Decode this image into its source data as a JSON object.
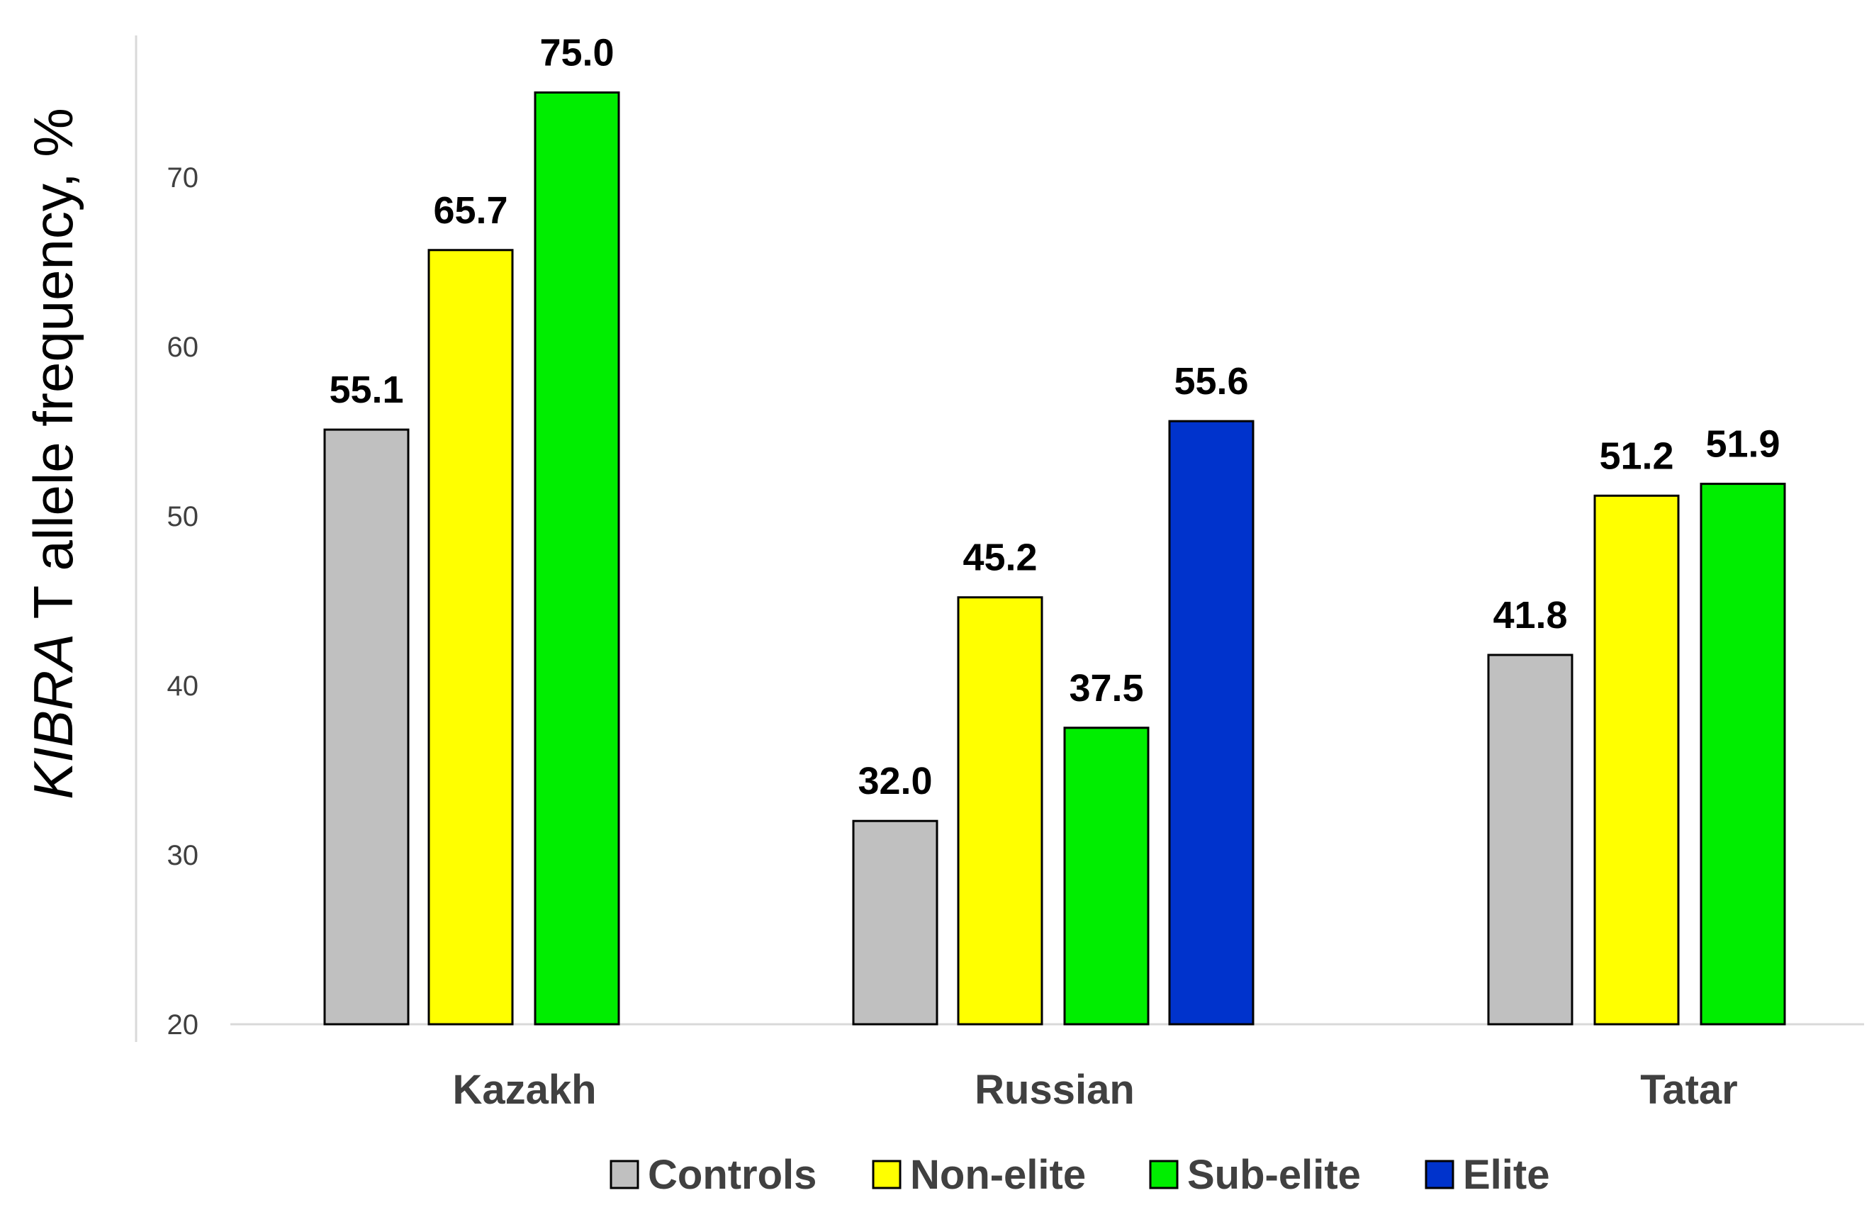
{
  "chart_data": {
    "type": "bar",
    "ylabel_italic": "KIBRA",
    "ylabel_rest": " T allele frequency, %",
    "ylim": [
      20,
      78
    ],
    "yticks": [
      20,
      30,
      40,
      50,
      60,
      70
    ],
    "grid": false,
    "legend_position": "bottom",
    "categories": [
      "Kazakh",
      "Russian",
      "Tatar"
    ],
    "series": [
      {
        "name": "Controls",
        "color": "#c0c0c0",
        "values": [
          55.1,
          32.0,
          41.8
        ]
      },
      {
        "name": "Non-elite",
        "color": "#ffff00",
        "values": [
          65.7,
          45.2,
          51.2
        ]
      },
      {
        "name": "Sub-elite",
        "color": "#00ee00",
        "values": [
          75.0,
          37.5,
          51.9
        ]
      },
      {
        "name": "Elite",
        "color": "#0033cc",
        "values": [
          null,
          55.6,
          null
        ]
      }
    ]
  }
}
